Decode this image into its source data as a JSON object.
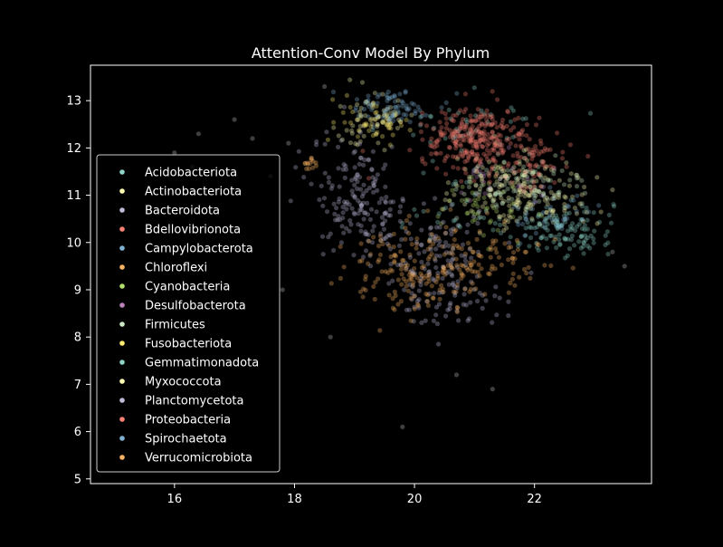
{
  "chart_data": {
    "type": "scatter",
    "title": "Attention-Conv Model By Phylum",
    "xlabel": "",
    "ylabel": "",
    "xlim": [
      14.6,
      23.95
    ],
    "ylim": [
      4.9,
      13.75
    ],
    "x_ticks": [
      16,
      18,
      20,
      22
    ],
    "y_ticks": [
      5,
      6,
      7,
      8,
      9,
      10,
      11,
      12,
      13
    ],
    "x_tick_labels": [
      "16",
      "18",
      "20",
      "22"
    ],
    "y_tick_labels": [
      "5",
      "6",
      "7",
      "8",
      "9",
      "10",
      "11",
      "12",
      "13"
    ],
    "grid": false,
    "legend_position": "center-left",
    "background": "#000000",
    "series": [
      {
        "name": "Acidobacteriota",
        "color": "#8dd3c7",
        "clusters": [
          {
            "cx": 22.4,
            "cy": 10.3,
            "sx": 0.45,
            "sy": 0.3,
            "n": 130
          },
          {
            "cx": 21.0,
            "cy": 12.5,
            "sx": 0.6,
            "sy": 0.3,
            "n": 40
          }
        ]
      },
      {
        "name": "Actinobacteriota",
        "color": "#feffb3",
        "clusters": [
          {
            "cx": 21.9,
            "cy": 11.0,
            "sx": 0.55,
            "sy": 0.35,
            "n": 150
          },
          {
            "cx": 19.3,
            "cy": 12.6,
            "sx": 0.35,
            "sy": 0.3,
            "n": 60
          }
        ]
      },
      {
        "name": "Bacteroidota",
        "color": "#bfbbd9",
        "clusters": [
          {
            "cx": 19.1,
            "cy": 10.9,
            "sx": 0.4,
            "sy": 0.65,
            "n": 170
          },
          {
            "cx": 20.5,
            "cy": 9.0,
            "sx": 0.5,
            "sy": 0.35,
            "n": 90
          }
        ]
      },
      {
        "name": "Bdellovibrionota",
        "color": "#fa8174",
        "clusters": [
          {
            "cx": 21.0,
            "cy": 12.0,
            "sx": 0.4,
            "sy": 0.3,
            "n": 30
          }
        ]
      },
      {
        "name": "Campylobacterota",
        "color": "#81b1d2",
        "clusters": [
          {
            "cx": 22.3,
            "cy": 10.6,
            "sx": 0.35,
            "sy": 0.25,
            "n": 40
          },
          {
            "cx": 19.6,
            "cy": 12.8,
            "sx": 0.3,
            "sy": 0.2,
            "n": 25
          }
        ]
      },
      {
        "name": "Chloroflexi",
        "color": "#fdb462",
        "clusters": [
          {
            "cx": 20.0,
            "cy": 9.4,
            "sx": 0.6,
            "sy": 0.45,
            "n": 160
          },
          {
            "cx": 21.6,
            "cy": 9.5,
            "sx": 0.4,
            "sy": 0.3,
            "n": 40
          },
          {
            "cx": 18.25,
            "cy": 11.65,
            "sx": 0.08,
            "sy": 0.08,
            "n": 14
          }
        ]
      },
      {
        "name": "Cyanobacteria",
        "color": "#b3de69",
        "clusters": [
          {
            "cx": 21.1,
            "cy": 10.8,
            "sx": 0.35,
            "sy": 0.35,
            "n": 50
          }
        ]
      },
      {
        "name": "Desulfobacterota",
        "color": "#bc82bd",
        "clusters": [
          {
            "cx": 21.3,
            "cy": 11.3,
            "sx": 0.4,
            "sy": 0.3,
            "n": 25
          }
        ]
      },
      {
        "name": "Firmicutes",
        "color": "#ccebc4",
        "clusters": [
          {
            "cx": 21.8,
            "cy": 11.2,
            "sx": 0.5,
            "sy": 0.3,
            "n": 110
          }
        ]
      },
      {
        "name": "Fusobacteriota",
        "color": "#ffed6f",
        "clusters": [
          {
            "cx": 19.3,
            "cy": 12.6,
            "sx": 0.3,
            "sy": 0.25,
            "n": 50
          }
        ]
      },
      {
        "name": "Gemmatimonadota",
        "color": "#8dd3c7",
        "clusters": [
          {
            "cx": 20.6,
            "cy": 10.8,
            "sx": 0.4,
            "sy": 0.3,
            "n": 25
          }
        ]
      },
      {
        "name": "Myxococcota",
        "color": "#feffb3",
        "clusters": [
          {
            "cx": 21.4,
            "cy": 11.6,
            "sx": 0.35,
            "sy": 0.25,
            "n": 25
          }
        ]
      },
      {
        "name": "Planctomycetota",
        "color": "#bfbbd9",
        "clusters": [
          {
            "cx": 20.4,
            "cy": 10.0,
            "sx": 0.45,
            "sy": 0.4,
            "n": 70
          }
        ]
      },
      {
        "name": "Proteobacteria",
        "color": "#fa8174",
        "clusters": [
          {
            "cx": 21.0,
            "cy": 12.2,
            "sx": 0.45,
            "sy": 0.3,
            "n": 240
          },
          {
            "cx": 21.9,
            "cy": 11.7,
            "sx": 0.4,
            "sy": 0.3,
            "n": 70
          }
        ]
      },
      {
        "name": "Spirochaetota",
        "color": "#81b1d2",
        "clusters": [
          {
            "cx": 19.6,
            "cy": 12.9,
            "sx": 0.35,
            "sy": 0.18,
            "n": 50
          }
        ]
      },
      {
        "name": "Verrucomicrobiota",
        "color": "#fdb462",
        "clusters": [
          {
            "cx": 20.9,
            "cy": 9.8,
            "sx": 0.5,
            "sy": 0.35,
            "n": 50
          }
        ]
      }
    ],
    "outliers": [
      {
        "x": 16.0,
        "y": 11.9
      },
      {
        "x": 16.3,
        "y": 11.6
      },
      {
        "x": 17.0,
        "y": 12.6
      },
      {
        "x": 17.3,
        "y": 12.2
      },
      {
        "x": 17.6,
        "y": 11.4
      },
      {
        "x": 18.6,
        "y": 8.0
      },
      {
        "x": 19.8,
        "y": 6.1
      },
      {
        "x": 21.3,
        "y": 6.9
      },
      {
        "x": 20.7,
        "y": 7.2
      },
      {
        "x": 23.5,
        "y": 9.5
      },
      {
        "x": 23.3,
        "y": 9.8
      },
      {
        "x": 17.8,
        "y": 9.0
      },
      {
        "x": 16.4,
        "y": 12.3
      },
      {
        "x": 17.9,
        "y": 12.1
      },
      {
        "x": 18.5,
        "y": 13.3
      }
    ]
  }
}
